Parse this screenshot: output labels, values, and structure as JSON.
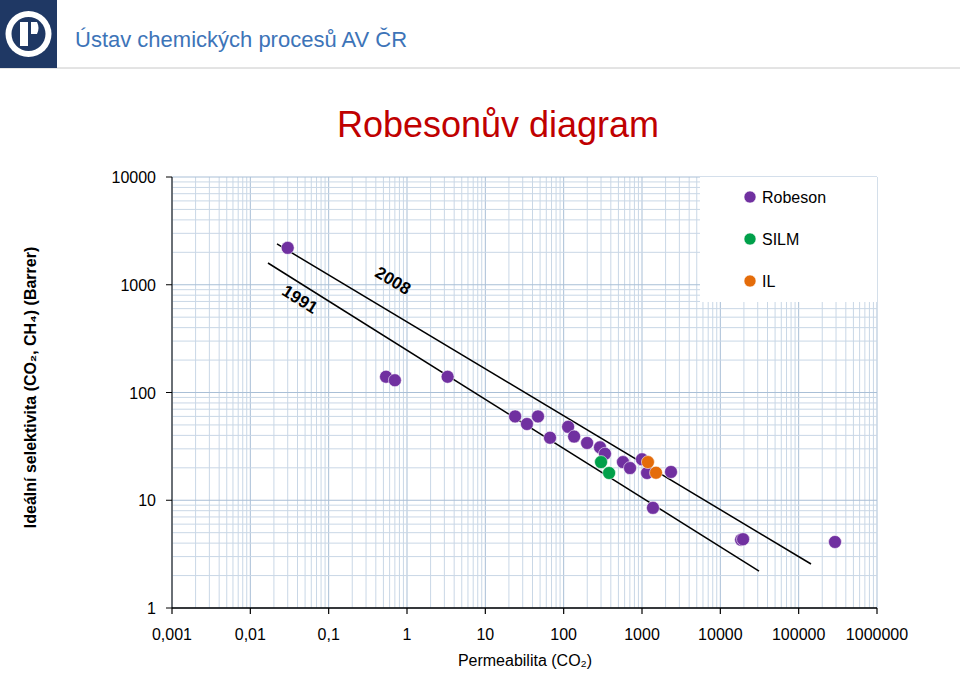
{
  "header": {
    "institute": "Ústav chemických procesů AV ČR"
  },
  "chart_data": {
    "type": "scatter",
    "title": "Robesonův diagram",
    "x_label": "Permeabilita (CO₂)",
    "y_label": "Ideální selektivita (CO₂, CH₄) (Barrer)",
    "log": true,
    "grid": true,
    "legend": "top right",
    "xlim": [
      0.001,
      1000000
    ],
    "ylim": [
      1,
      10000
    ],
    "xticks": [
      {
        "value": 0.001,
        "label": "0,001"
      },
      {
        "value": 0.01,
        "label": "0,01"
      },
      {
        "value": 0.1,
        "label": "0,1"
      },
      1,
      10,
      100,
      1000,
      10000,
      100000,
      1000000
    ],
    "yticks": [
      1,
      10,
      100,
      1000,
      10000
    ],
    "series": [
      {
        "name": "Robeson",
        "type": "scatter",
        "marker": "circle",
        "color": "#7030a0",
        "x": [
          0.03,
          0.54,
          0.7,
          3.3,
          24,
          34,
          47,
          67,
          114,
          136,
          199,
          291,
          337,
          572,
          703,
          1000,
          1160,
          2345,
          1380,
          18400,
          19500,
          291000
        ],
        "values": [
          2200,
          140,
          130,
          140,
          60,
          51,
          60,
          38,
          48,
          39,
          34,
          31,
          27,
          22.6,
          19.9,
          24,
          17.9,
          18.3,
          8.5,
          4.3,
          4.35,
          4.1
        ]
      },
      {
        "name": "SILM",
        "type": "scatter",
        "marker": "circle",
        "color": "#00a04a",
        "x": [
          300,
          380
        ],
        "values": [
          22.6,
          17.9
        ]
      },
      {
        "name": "IL",
        "type": "scatter",
        "marker": "circle",
        "color": "#e46c0a",
        "x": [
          1190,
          1510
        ],
        "values": [
          22.6,
          18
        ]
      },
      {
        "name": "1991",
        "type": "line",
        "line_style": "solid",
        "color": "#000000",
        "x": [
          0.0168,
          31200
        ],
        "values": [
          1592,
          2.2
        ]
      },
      {
        "name": "2008",
        "type": "line",
        "line_style": "solid",
        "color": "#000000",
        "x": [
          0.0219,
          143800
        ],
        "values": [
          2390,
          2.56
        ]
      }
    ]
  }
}
